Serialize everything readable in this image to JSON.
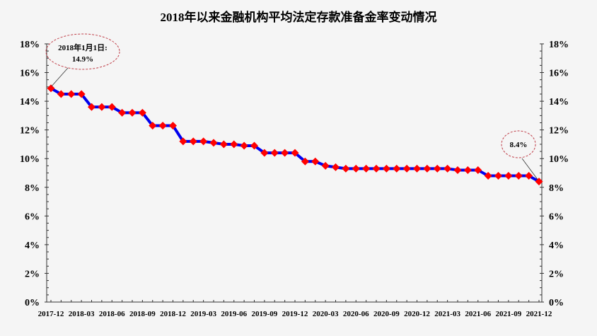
{
  "chart_data": {
    "type": "line",
    "title": "2018年以来金融机构平均法定存款准备金率变动情况",
    "xlabel": "",
    "ylabel": "",
    "ylim": [
      0,
      18
    ],
    "yticks": [
      "0%",
      "2%",
      "4%",
      "6%",
      "8%",
      "10%",
      "12%",
      "14%",
      "16%",
      "18%"
    ],
    "y_axis_both_sides": true,
    "grid": false,
    "legend": null,
    "x_tick_labels": [
      "2017-12",
      "2018-03",
      "2018-06",
      "2018-09",
      "2018-12",
      "2019-03",
      "2019-06",
      "2019-09",
      "2019-12",
      "2020-03",
      "2020-06",
      "2020-09",
      "2020-12",
      "2021-03",
      "2021-06",
      "2021-09",
      "2021-12"
    ],
    "x": [
      "2017-12",
      "2018-01",
      "2018-02",
      "2018-03",
      "2018-04",
      "2018-05",
      "2018-06",
      "2018-07",
      "2018-08",
      "2018-09",
      "2018-10",
      "2018-11",
      "2018-12",
      "2019-01",
      "2019-02",
      "2019-03",
      "2019-04",
      "2019-05",
      "2019-06",
      "2019-07",
      "2019-08",
      "2019-09",
      "2019-10",
      "2019-11",
      "2019-12",
      "2020-01",
      "2020-02",
      "2020-03",
      "2020-04",
      "2020-05",
      "2020-06",
      "2020-07",
      "2020-08",
      "2020-09",
      "2020-10",
      "2020-11",
      "2020-12",
      "2021-01",
      "2021-02",
      "2021-03",
      "2021-04",
      "2021-05",
      "2021-06",
      "2021-07",
      "2021-08",
      "2021-09",
      "2021-10",
      "2021-11",
      "2021-12"
    ],
    "series": [
      {
        "name": "平均法定存款准备金率",
        "line_color": "#0000ee",
        "marker_color": "#ff0000",
        "values": [
          14.9,
          14.5,
          14.5,
          14.5,
          13.6,
          13.6,
          13.6,
          13.2,
          13.2,
          13.2,
          12.3,
          12.3,
          12.3,
          11.2,
          11.2,
          11.2,
          11.1,
          11.0,
          11.0,
          10.9,
          10.9,
          10.4,
          10.4,
          10.4,
          10.4,
          9.8,
          9.8,
          9.5,
          9.4,
          9.3,
          9.3,
          9.3,
          9.3,
          9.3,
          9.3,
          9.3,
          9.3,
          9.3,
          9.3,
          9.3,
          9.2,
          9.2,
          9.2,
          8.8,
          8.8,
          8.8,
          8.8,
          8.8,
          8.4
        ]
      }
    ],
    "annotations": [
      {
        "line1": "2018年1月1日:",
        "line2": "14.9%",
        "target": "2017-12"
      },
      {
        "line1": "8.4%",
        "target": "2021-12"
      }
    ]
  }
}
